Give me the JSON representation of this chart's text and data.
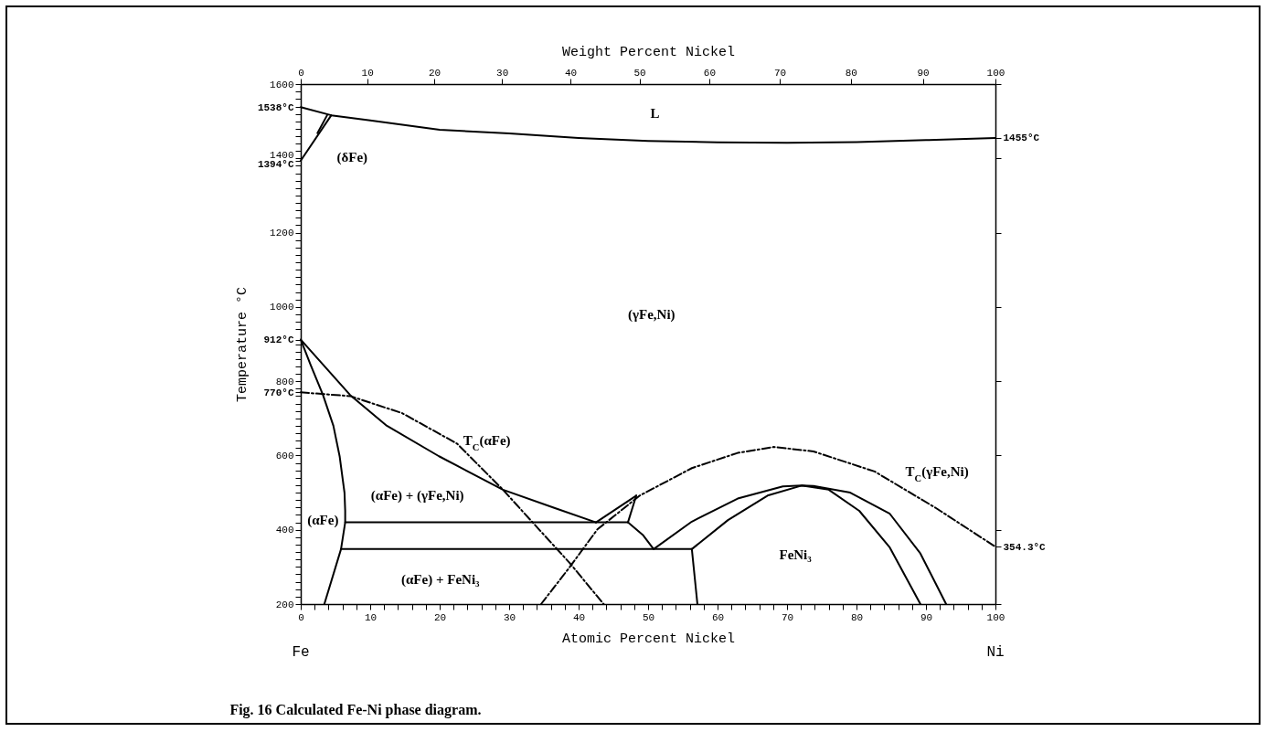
{
  "chart_data": {
    "type": "line",
    "title": "Fig. 16 Calculated Fe-Ni phase diagram.",
    "xlabel": "Atomic Percent Nickel",
    "x2label": "Weight Percent Nickel",
    "ylabel": "Temperature °C",
    "xlim": [
      0,
      100
    ],
    "ylim": [
      200,
      1600
    ],
    "x2lim": [
      0,
      100
    ],
    "y2lim": [
      200,
      1600
    ],
    "xticks": [
      0,
      {
        "value": 2,
        "label": null
      },
      {
        "value": 4,
        "label": null
      },
      {
        "value": 6,
        "label": null
      },
      {
        "value": 8,
        "label": null
      },
      10,
      {
        "value": 12,
        "label": null
      },
      {
        "value": 14,
        "label": null
      },
      {
        "value": 16,
        "label": null
      },
      {
        "value": 18,
        "label": null
      },
      20,
      {
        "value": 22,
        "label": null
      },
      {
        "value": 24,
        "label": null
      },
      {
        "value": 26,
        "label": null
      },
      {
        "value": 28,
        "label": null
      },
      30,
      {
        "value": 32,
        "label": null
      },
      {
        "value": 34,
        "label": null
      },
      {
        "value": 36,
        "label": null
      },
      {
        "value": 38,
        "label": null
      },
      40,
      {
        "value": 42,
        "label": null
      },
      {
        "value": 44,
        "label": null
      },
      {
        "value": 46,
        "label": null
      },
      {
        "value": 48,
        "label": null
      },
      50,
      {
        "value": 52,
        "label": null
      },
      {
        "value": 54,
        "label": null
      },
      {
        "value": 56,
        "label": null
      },
      {
        "value": 58,
        "label": null
      },
      60,
      {
        "value": 62,
        "label": null
      },
      {
        "value": 64,
        "label": null
      },
      {
        "value": 66,
        "label": null
      },
      {
        "value": 68,
        "label": null
      },
      70,
      {
        "value": 72,
        "label": null
      },
      {
        "value": 74,
        "label": null
      },
      {
        "value": 76,
        "label": null
      },
      {
        "value": 78,
        "label": null
      },
      80,
      {
        "value": 82,
        "label": null
      },
      {
        "value": 84,
        "label": null
      },
      {
        "value": 86,
        "label": null
      },
      {
        "value": 88,
        "label": null
      },
      90,
      {
        "value": 92,
        "label": null
      },
      {
        "value": 94,
        "label": null
      },
      {
        "value": 96,
        "label": null
      },
      {
        "value": 98,
        "label": null
      },
      100
    ],
    "x2ticks": [
      0,
      10,
      20,
      30,
      40,
      50,
      60,
      70,
      80,
      90,
      100
    ],
    "yticks": [
      200,
      {
        "value": 220,
        "label": null
      },
      {
        "value": 240,
        "label": null
      },
      {
        "value": 260,
        "label": null
      },
      {
        "value": 280,
        "label": null
      },
      {
        "value": 300,
        "label": null
      },
      {
        "value": 320,
        "label": null
      },
      {
        "value": 340,
        "label": null
      },
      {
        "value": 360,
        "label": null
      },
      {
        "value": 380,
        "label": null
      },
      400,
      {
        "value": 420,
        "label": null
      },
      {
        "value": 440,
        "label": null
      },
      {
        "value": 460,
        "label": null
      },
      {
        "value": 480,
        "label": null
      },
      {
        "value": 500,
        "label": null
      },
      {
        "value": 520,
        "label": null
      },
      {
        "value": 540,
        "label": null
      },
      {
        "value": 560,
        "label": null
      },
      {
        "value": 580,
        "label": null
      },
      600,
      {
        "value": 620,
        "label": null
      },
      {
        "value": 640,
        "label": null
      },
      {
        "value": 660,
        "label": null
      },
      {
        "value": 680,
        "label": null
      },
      {
        "value": 700,
        "label": null
      },
      {
        "value": 720,
        "label": null
      },
      {
        "value": 740,
        "label": null
      },
      {
        "value": 760,
        "label": null
      },
      {
        "value": 780,
        "label": null
      },
      800,
      {
        "value": 770,
        "label": "770°C"
      },
      {
        "value": 820,
        "label": null
      },
      {
        "value": 840,
        "label": null
      },
      {
        "value": 860,
        "label": null
      },
      {
        "value": 880,
        "label": null
      },
      {
        "value": 900,
        "label": null
      },
      {
        "value": 912,
        "label": "912°C"
      },
      {
        "value": 940,
        "label": null
      },
      {
        "value": 960,
        "label": null
      },
      {
        "value": 980,
        "label": null
      },
      1000,
      {
        "value": 1020,
        "label": null
      },
      {
        "value": 1040,
        "label": null
      },
      {
        "value": 1060,
        "label": null
      },
      {
        "value": 1080,
        "label": null
      },
      {
        "value": 1100,
        "label": null
      },
      {
        "value": 1120,
        "label": null
      },
      {
        "value": 1140,
        "label": null
      },
      {
        "value": 1160,
        "label": null
      },
      {
        "value": 1180,
        "label": null
      },
      1200,
      {
        "value": 1220,
        "label": null
      },
      {
        "value": 1240,
        "label": null
      },
      {
        "value": 1260,
        "label": null
      },
      {
        "value": 1280,
        "label": null
      },
      {
        "value": 1300,
        "label": null
      },
      {
        "value": 1320,
        "label": null
      },
      {
        "value": 1340,
        "label": null
      },
      {
        "value": 1360,
        "label": null
      },
      {
        "value": 1380,
        "label": null
      },
      1400,
      {
        "value": 1394,
        "label": "1394°C"
      },
      {
        "value": 1420,
        "label": null
      },
      {
        "value": 1440,
        "label": null
      },
      {
        "value": 1460,
        "label": null
      },
      {
        "value": 1480,
        "label": null
      },
      {
        "value": 1500,
        "label": null
      },
      {
        "value": 1520,
        "label": null
      },
      {
        "value": 1538,
        "label": "1538°C"
      },
      {
        "value": 1560,
        "label": null
      },
      {
        "value": 1580,
        "label": null
      },
      1600
    ],
    "y2ticks": [
      {
        "value": 200,
        "label": null
      },
      {
        "value": 400,
        "label": null
      },
      {
        "value": 600,
        "label": null
      },
      {
        "value": 800,
        "label": null
      },
      {
        "value": 1000,
        "label": null
      },
      {
        "value": 1200,
        "label": null
      },
      {
        "value": 1400,
        "label": null
      },
      {
        "value": 1600,
        "label": null
      },
      {
        "value": 1455,
        "label": "1455°C"
      },
      {
        "value": 354.3,
        "label": "354.3°C"
      }
    ],
    "grid": false,
    "legend": false,
    "series": [
      {
        "type": "line",
        "color": "#000000",
        "line_style": "solid",
        "x": [
          0,
          4.4,
          10,
          20,
          30,
          40,
          50,
          60,
          70,
          80,
          90,
          100
        ],
        "values": [
          1538,
          1516,
          1502,
          1477,
          1467,
          1455,
          1447,
          1443,
          1442,
          1444,
          1449,
          1455
        ]
      },
      {
        "type": "line",
        "color": "#000000",
        "line_style": "solid",
        "x": [
          0,
          4.4
        ],
        "values": [
          1394,
          1516
        ]
      },
      {
        "type": "line",
        "color": "#000000",
        "line_style": "solid",
        "x": [
          2.4,
          3.8
        ],
        "values": [
          1468,
          1516
        ]
      },
      {
        "type": "line",
        "color": "#000000",
        "line_style": "solid",
        "x": [
          0,
          1.4,
          3.2,
          4.7,
          5.6,
          6.3,
          6.4,
          6.4,
          5.8,
          3.4
        ],
        "values": [
          912,
          845,
          763,
          680,
          598,
          500,
          451,
          420,
          348,
          200
        ]
      },
      {
        "type": "line",
        "color": "#000000",
        "line_style": "solid",
        "x": [
          0,
          3.2,
          7.1,
          12.4,
          19.9,
          29.1,
          36.5,
          42.5
        ],
        "values": [
          912,
          845,
          763,
          680,
          598,
          508,
          459,
          420
        ]
      },
      {
        "type": "line",
        "color": "#000000",
        "line_style": "solid",
        "x": [
          6.4,
          47.1
        ],
        "values": [
          420,
          420
        ]
      },
      {
        "type": "line",
        "color": "#000000",
        "line_style": "solid",
        "x": [
          5.8,
          56.3
        ],
        "values": [
          348,
          348
        ]
      },
      {
        "type": "line",
        "color": "#000000",
        "line_style": "solid",
        "x": [
          42.5,
          48.3
        ],
        "values": [
          420,
          492
        ]
      },
      {
        "type": "line",
        "color": "#000000",
        "line_style": "solid",
        "x": [
          47.1,
          48.3
        ],
        "values": [
          420,
          492
        ]
      },
      {
        "type": "line",
        "color": "#000000",
        "line_style": "solid",
        "x": [
          47.1,
          49.3,
          50.8
        ],
        "values": [
          420,
          385,
          348
        ]
      },
      {
        "type": "line",
        "color": "#000000",
        "line_style": "solid",
        "x": [
          50.8,
          56.3,
          62.9,
          69.4,
          72.1,
          73.8,
          79.1,
          84.8,
          89.2,
          92.9
        ],
        "values": [
          348,
          422,
          484,
          517,
          519,
          518,
          500,
          443,
          336,
          200
        ]
      },
      {
        "type": "line",
        "color": "#000000",
        "line_style": "solid",
        "x": [
          56.3,
          61.5,
          67.2,
          72.1,
          76,
          80.4,
          84.8,
          89.2
        ],
        "values": [
          348,
          426,
          492,
          519,
          508,
          451,
          352,
          200
        ]
      },
      {
        "type": "line",
        "color": "#000000",
        "line_style": "solid",
        "x": [
          56.3,
          57.1
        ],
        "values": [
          348,
          200
        ]
      },
      {
        "type": "line",
        "color": "#000000",
        "line_style": "dashed",
        "x": [
          0,
          7.1,
          14.6,
          22.5,
          29.1,
          34.3,
          38.7,
          43.6
        ],
        "values": [
          770,
          760,
          714,
          632,
          508,
          401,
          311,
          200
        ]
      },
      {
        "type": "line",
        "color": "#000000",
        "line_style": "dashed",
        "x": [
          34.6,
          38.7,
          42.7,
          48.8,
          56.3,
          62.9,
          68.1,
          73.8,
          82.6,
          91.4,
          100
        ],
        "values": [
          200,
          299,
          401,
          492,
          566,
          607,
          623,
          611,
          557,
          459,
          354.3
        ]
      }
    ],
    "annotations": [
      "L",
      "(δFe)",
      "(γFe,Ni)",
      "T$_{C}$(αFe)",
      "(αFe) + (γFe,Ni)",
      "(αFe)",
      "(αFe) + FeNi₃",
      "FeNi₃",
      "T$_{C}$(γFe,Ni)",
      "Fe",
      "Ni"
    ]
  }
}
